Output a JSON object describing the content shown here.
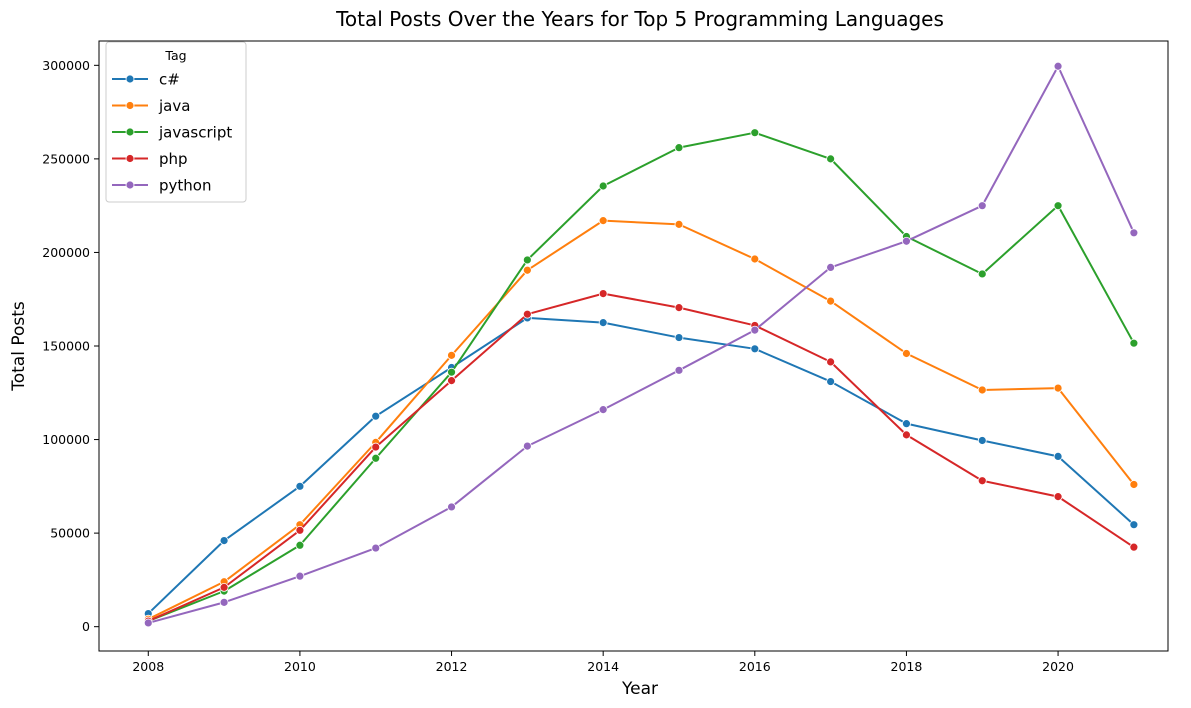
{
  "chart_data": {
    "type": "line",
    "title": "Total Posts Over the Years for Top 5 Programming Languages",
    "xlabel": "Year",
    "ylabel": "Total Posts",
    "legend_title": "Tag",
    "legend_position": "top-left",
    "grid": false,
    "xlim": [
      2007.35,
      2021.45
    ],
    "ylim": [
      -13000,
      313000
    ],
    "x_ticks": [
      2008,
      2010,
      2012,
      2014,
      2016,
      2018,
      2020
    ],
    "y_ticks": [
      0,
      50000,
      100000,
      150000,
      200000,
      250000,
      300000
    ],
    "x": [
      2008,
      2009,
      2010,
      2011,
      2012,
      2013,
      2014,
      2015,
      2016,
      2017,
      2018,
      2019,
      2020,
      2021
    ],
    "series": [
      {
        "name": "c#",
        "color": "#1f77b4",
        "values": [
          7000,
          46000,
          75000,
          112500,
          138500,
          165000,
          162500,
          154500,
          148500,
          131000,
          108500,
          99500,
          91000,
          54500
        ]
      },
      {
        "name": "java",
        "color": "#ff7f0e",
        "values": [
          4000,
          24000,
          54500,
          98500,
          145000,
          190500,
          217000,
          215000,
          196500,
          174000,
          146000,
          126500,
          127500,
          76000
        ]
      },
      {
        "name": "javascript",
        "color": "#2ca02c",
        "values": [
          3000,
          19000,
          43500,
          90000,
          136000,
          196000,
          235500,
          256000,
          264000,
          250000,
          208500,
          188500,
          225000,
          151500
        ]
      },
      {
        "name": "php",
        "color": "#d62728",
        "values": [
          3000,
          21000,
          51500,
          96000,
          131500,
          167000,
          178000,
          170500,
          161000,
          141500,
          102500,
          78000,
          69500,
          42500
        ]
      },
      {
        "name": "python",
        "color": "#9467bd",
        "values": [
          2000,
          13000,
          27000,
          42000,
          64000,
          96500,
          116000,
          137000,
          158500,
          192000,
          206000,
          225000,
          299500,
          210500
        ]
      }
    ]
  }
}
